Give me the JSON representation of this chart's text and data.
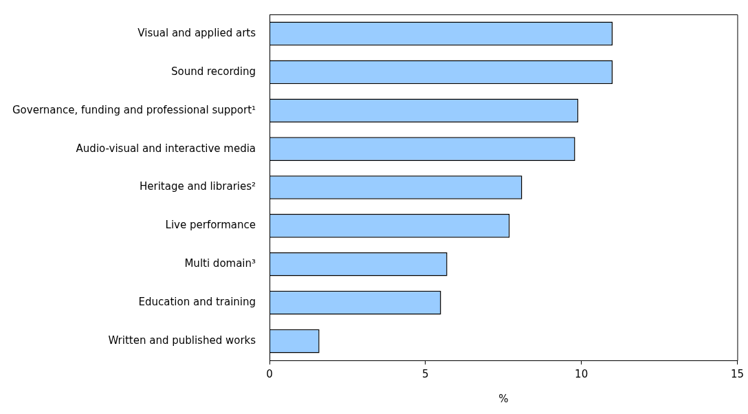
{
  "chart_data": {
    "type": "bar",
    "orientation": "horizontal",
    "categories": [
      "Visual and applied arts",
      "Sound recording",
      "Governance, funding and professional support¹",
      "Audio-visual and interactive media",
      "Heritage and libraries²",
      "Live performance",
      "Multi domain³",
      "Education and training",
      "Written and published works"
    ],
    "values": [
      11.0,
      11.0,
      9.9,
      9.8,
      8.1,
      7.7,
      5.7,
      5.5,
      1.6
    ],
    "color": "#99ccff",
    "xlim": [
      0,
      15
    ],
    "xticks": [
      0,
      5,
      10,
      15
    ],
    "xlabel": "%",
    "grid": false,
    "legend": false
  }
}
